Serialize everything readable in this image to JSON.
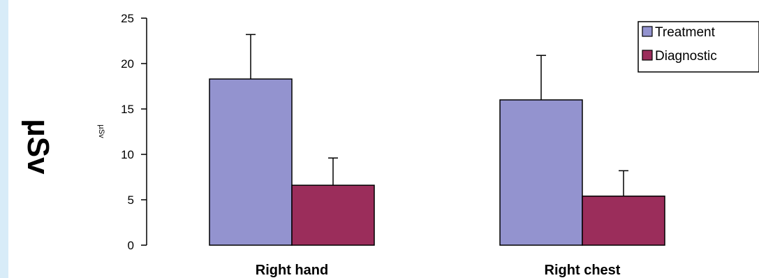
{
  "side_label": "µSv",
  "chart_data": {
    "type": "bar",
    "categories": [
      "Right hand",
      "Right chest"
    ],
    "series": [
      {
        "name": "Treatment",
        "color": "#9393cf",
        "values": [
          18.3,
          16.0
        ],
        "errors": [
          4.9,
          4.9
        ]
      },
      {
        "name": "Diagnostic",
        "color": "#9b2d5b",
        "values": [
          6.6,
          5.4
        ],
        "errors": [
          3.0,
          2.8
        ]
      }
    ],
    "ylabel": "µSv",
    "xlabel": "",
    "title": "",
    "ylim": [
      0,
      25
    ],
    "yticks": [
      0,
      5,
      10,
      15,
      20,
      25
    ],
    "legend_position": "top-right",
    "grid": false
  }
}
